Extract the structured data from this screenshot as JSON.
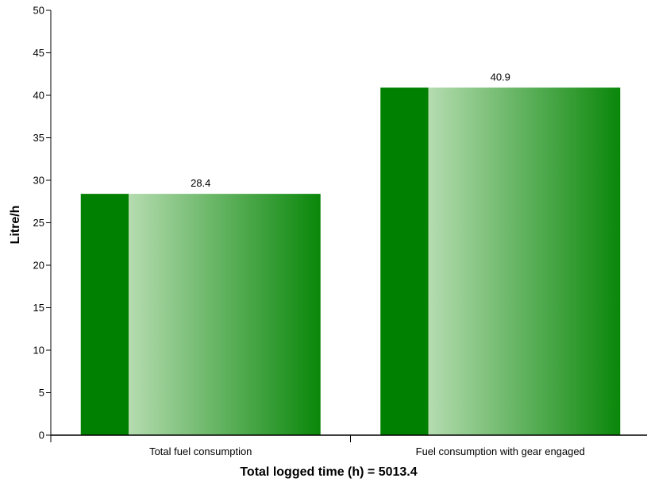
{
  "chart_data": {
    "type": "bar",
    "categories": [
      "Total fuel consumption",
      "Fuel consumption with gear engaged"
    ],
    "values": [
      28.4,
      40.9
    ],
    "value_labels": [
      "28.4",
      "40.9"
    ],
    "xlabel": "Total logged time (h) = 5013.4",
    "ylabel": "Litre/h",
    "ylim": [
      0,
      50
    ],
    "yticks": [
      0,
      5,
      10,
      15,
      20,
      25,
      30,
      35,
      40,
      45,
      50
    ],
    "grid": false,
    "legend": "none",
    "colors": {
      "bar_dark": "#008000",
      "bar_light": "#b5dcb0",
      "bar_end": "#0a870a",
      "axis": "#000000"
    }
  }
}
